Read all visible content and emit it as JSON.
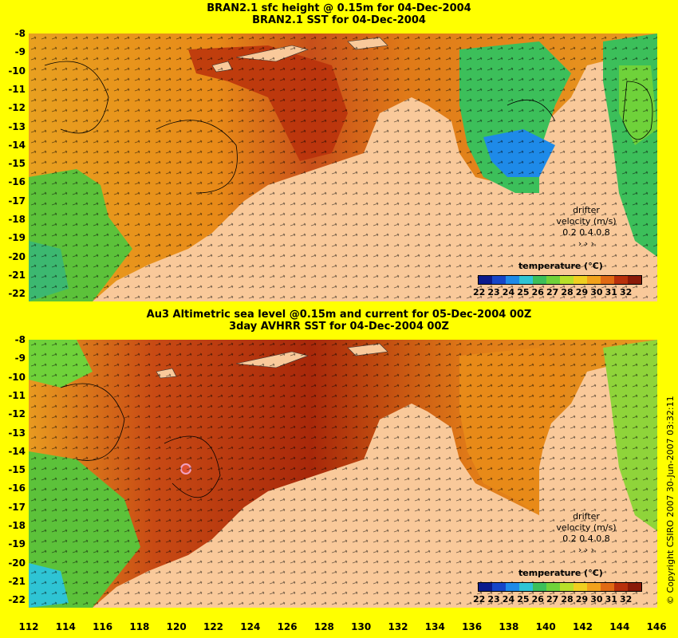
{
  "top": {
    "title_line1": "BRAN2.1 sfc height @ 0.15m for 04-Dec-2004",
    "title_line2": "BRAN2.1 SST for 04-Dec-2004",
    "legend_title": "temperature (°C)",
    "drifter_line1": "drifter",
    "drifter_line2": "velocity (m/s)",
    "drifter_line3": "0.2 0.4 0.8"
  },
  "bottom": {
    "title_line1": "Au3 Altimetric sea level  @0.15m and current for 05-Dec-2004 00Z",
    "title_line2": "3day AVHRR SST for 04-Dec-2004 00Z",
    "legend_title": "temperature (°C)",
    "drifter_line1": "drifter",
    "drifter_line2": "velocity (m/s)",
    "drifter_line3": "0.2 0.4 0.8"
  },
  "y_ticks": [
    "-8",
    "-9",
    "-10",
    "-11",
    "-12",
    "-13",
    "-14",
    "-15",
    "-16",
    "-17",
    "-18",
    "-19",
    "-20",
    "-21",
    "-22"
  ],
  "x_ticks": [
    "112",
    "114",
    "116",
    "118",
    "120",
    "122",
    "124",
    "126",
    "128",
    "130",
    "132",
    "134",
    "136",
    "138",
    "140",
    "142",
    "144",
    "146"
  ],
  "colorbar_labels": [
    "22",
    "23",
    "24",
    "25",
    "26",
    "27",
    "28",
    "29",
    "30",
    "31",
    "32"
  ],
  "copyright": "© Copyright CSIRO 2007   30-Jun-2007 03:32:11",
  "colors": {
    "background": "#ffff00",
    "land": "#f9c99a",
    "colorbar": [
      "#0a1a8c",
      "#1545c8",
      "#1e8ae8",
      "#2ec4d4",
      "#3cbf5a",
      "#6fd23a",
      "#b8e02a",
      "#f0d020",
      "#f2a21c",
      "#e06a14",
      "#b8300c",
      "#8a1a08"
    ]
  }
}
